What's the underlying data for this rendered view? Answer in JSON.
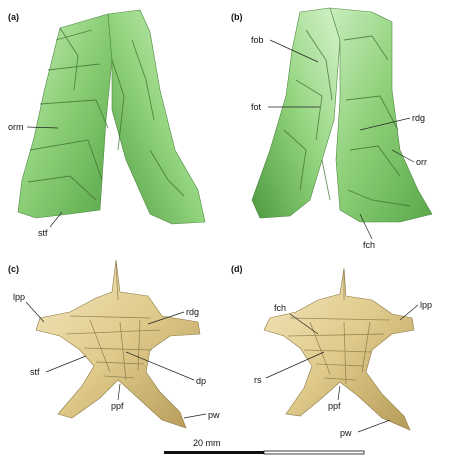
{
  "panels": [
    {
      "id": "a",
      "label": "(a)",
      "annotations": [
        "orm",
        "stf"
      ]
    },
    {
      "id": "b",
      "label": "(b)",
      "annotations": [
        "fob",
        "fot",
        "rdg",
        "orr",
        "fch"
      ]
    },
    {
      "id": "c",
      "label": "(c)",
      "annotations": [
        "lpp",
        "rdg",
        "stf",
        "dp",
        "ppf",
        "pw"
      ]
    },
    {
      "id": "d",
      "label": "(d)",
      "annotations": [
        "fch",
        "lpp",
        "rs",
        "ppf",
        "pw"
      ]
    }
  ],
  "scale_bar": {
    "label": "20 mm"
  },
  "colors": {
    "green_bone": "#8fd17a",
    "tan_bone": "#e2cf94",
    "background": "#ffffff"
  }
}
